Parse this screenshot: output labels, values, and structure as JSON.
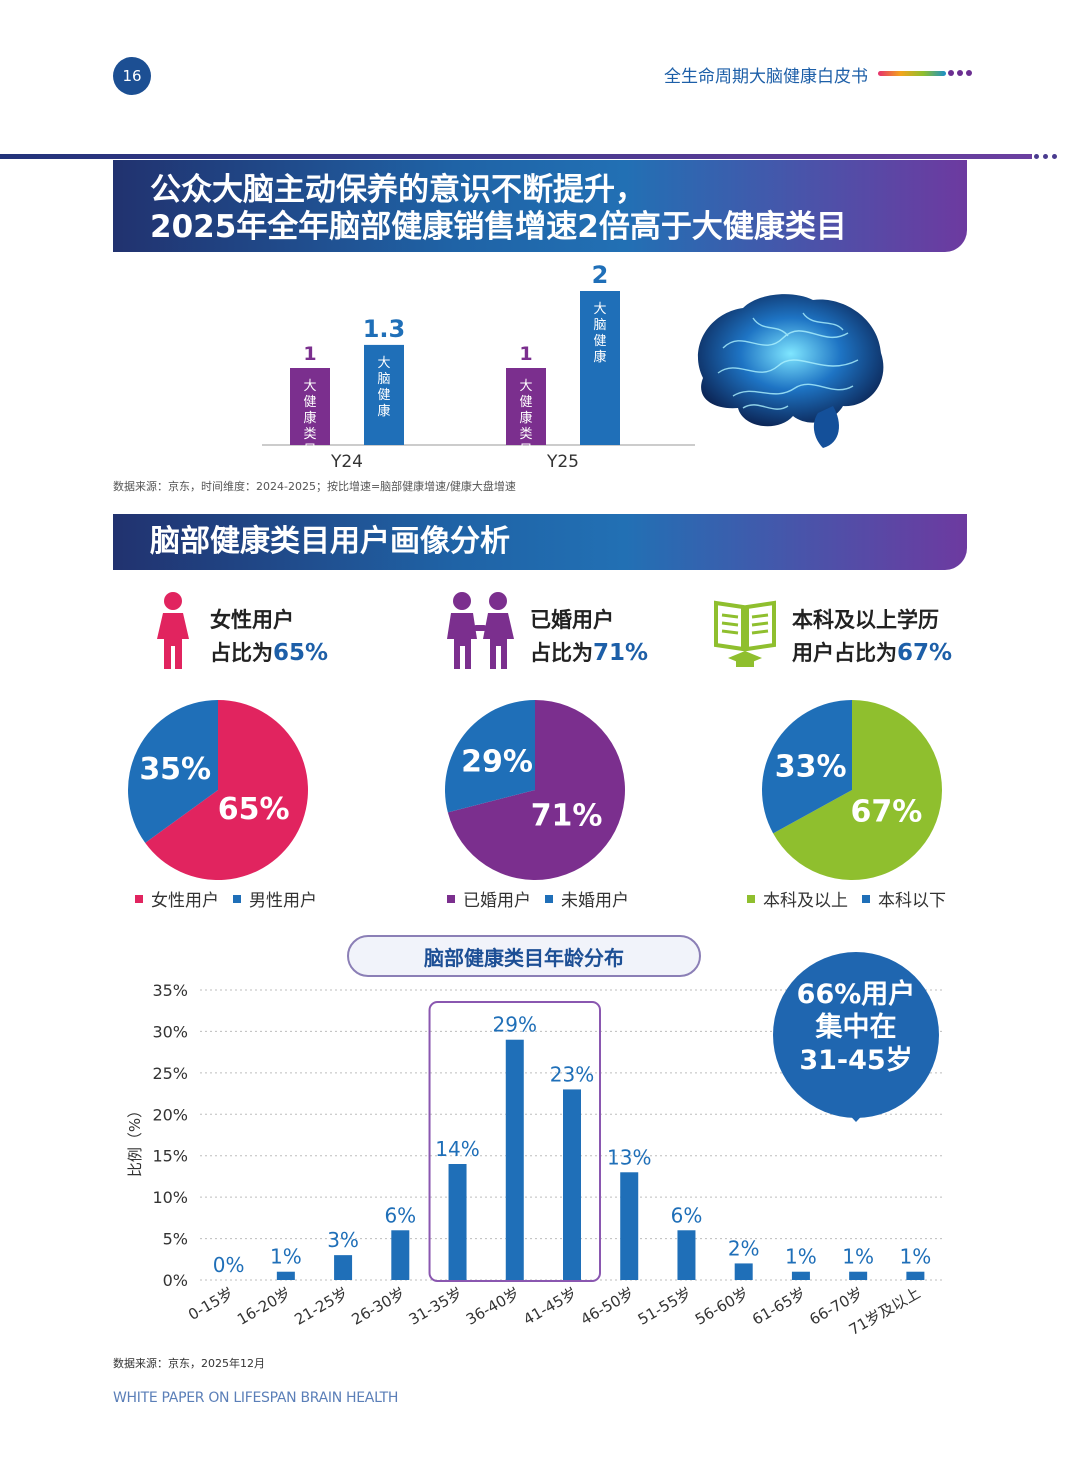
{
  "header": {
    "page_number": "16",
    "doc_title": "全生命周期大脑健康白皮书"
  },
  "banner1": {
    "line1": "公众大脑主动保养的意识不断提升，",
    "line2": "2025年全年脑部健康销售增速2倍高于大健康类目"
  },
  "chart_data": [
    {
      "type": "bar",
      "categories": [
        "Y24",
        "Y25"
      ],
      "series": [
        {
          "name": "大健康类目",
          "values": [
            1,
            1
          ],
          "value_labels": [
            "1",
            "1"
          ]
        },
        {
          "name": "大脑健康",
          "values": [
            1.3,
            2
          ],
          "value_labels": [
            "1.3",
            "2"
          ]
        }
      ],
      "colors": {
        "大健康类目": "#7b2f8e",
        "大脑健康": "#1f6fb8"
      },
      "source": "数据来源：京东，时间维度：2024-2025；按比增速=脑部健康增速/健康大盘增速"
    },
    {
      "type": "pie",
      "labels": [
        "女性用户",
        "男性用户"
      ],
      "values": [
        65,
        35
      ],
      "value_labels": [
        "65%",
        "35%"
      ],
      "colors": [
        "#e1245f",
        "#1f6fb8"
      ]
    },
    {
      "type": "pie",
      "labels": [
        "已婚用户",
        "未婚用户"
      ],
      "values": [
        71,
        29
      ],
      "value_labels": [
        "71%",
        "29%"
      ],
      "colors": [
        "#7b2f8e",
        "#1f6fb8"
      ]
    },
    {
      "type": "pie",
      "labels": [
        "本科及以上",
        "本科以下"
      ],
      "values": [
        67,
        33
      ],
      "value_labels": [
        "67%",
        "33%"
      ],
      "colors": [
        "#8fbf2e",
        "#1f6fb8"
      ]
    },
    {
      "type": "bar",
      "title": "脑部健康类目年龄分布",
      "ylabel": "比例（%）",
      "ylim": [
        0,
        35
      ],
      "yticks": [
        "0%",
        "5%",
        "10%",
        "15%",
        "20%",
        "25%",
        "30%",
        "35%"
      ],
      "categories": [
        "0-15岁",
        "16-20岁",
        "21-25岁",
        "26-30岁",
        "31-35岁",
        "36-40岁",
        "41-45岁",
        "46-50岁",
        "51-55岁",
        "56-60岁",
        "61-65岁",
        "66-70岁",
        "71岁及以上"
      ],
      "values": [
        0,
        1,
        3,
        6,
        14,
        29,
        23,
        13,
        6,
        2,
        1,
        1,
        1
      ],
      "value_labels": [
        "0%",
        "1%",
        "3%",
        "6%",
        "14%",
        "29%",
        "23%",
        "13%",
        "6%",
        "2%",
        "1%",
        "1%",
        "1%"
      ],
      "highlight_range": [
        "31-35岁",
        "41-45岁"
      ],
      "grid": true,
      "color": "#1f6fb8"
    }
  ],
  "banner2": {
    "title": "脑部健康类目用户画像分析"
  },
  "profiles": [
    {
      "line1": "女性用户",
      "prefix": "占比为",
      "value": "65%"
    },
    {
      "line1": "已婚用户",
      "prefix": "占比为",
      "value": "71%"
    },
    {
      "line1": "本科及以上学历",
      "prefix": "用户占比为",
      "value": "67%"
    }
  ],
  "callout": {
    "line1": "66%用户",
    "line2": "集中在",
    "line3": "31-45岁"
  },
  "footer": {
    "source": "数据来源：京东，2025年12月",
    "english_title": "WHITE PAPER ON LIFESPAN BRAIN HEALTH"
  },
  "colors": {
    "accent_blue": "#1f6fb8",
    "purple": "#7b2f8e",
    "pink": "#e1245f",
    "green": "#8fbf2e"
  }
}
